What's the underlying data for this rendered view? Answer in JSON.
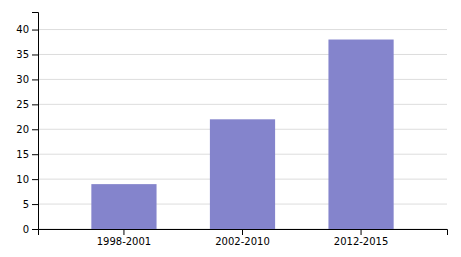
{
  "chart_data": {
    "type": "bar",
    "categories": [
      "1998-2001",
      "2002-2010",
      "2012-2015"
    ],
    "values": [
      9,
      22,
      38
    ],
    "color": "#8484cc",
    "ylim": [
      0,
      43.52
    ],
    "yticks": [
      0,
      5,
      10,
      15,
      20,
      25,
      30,
      35,
      40
    ],
    "grid": true
  }
}
